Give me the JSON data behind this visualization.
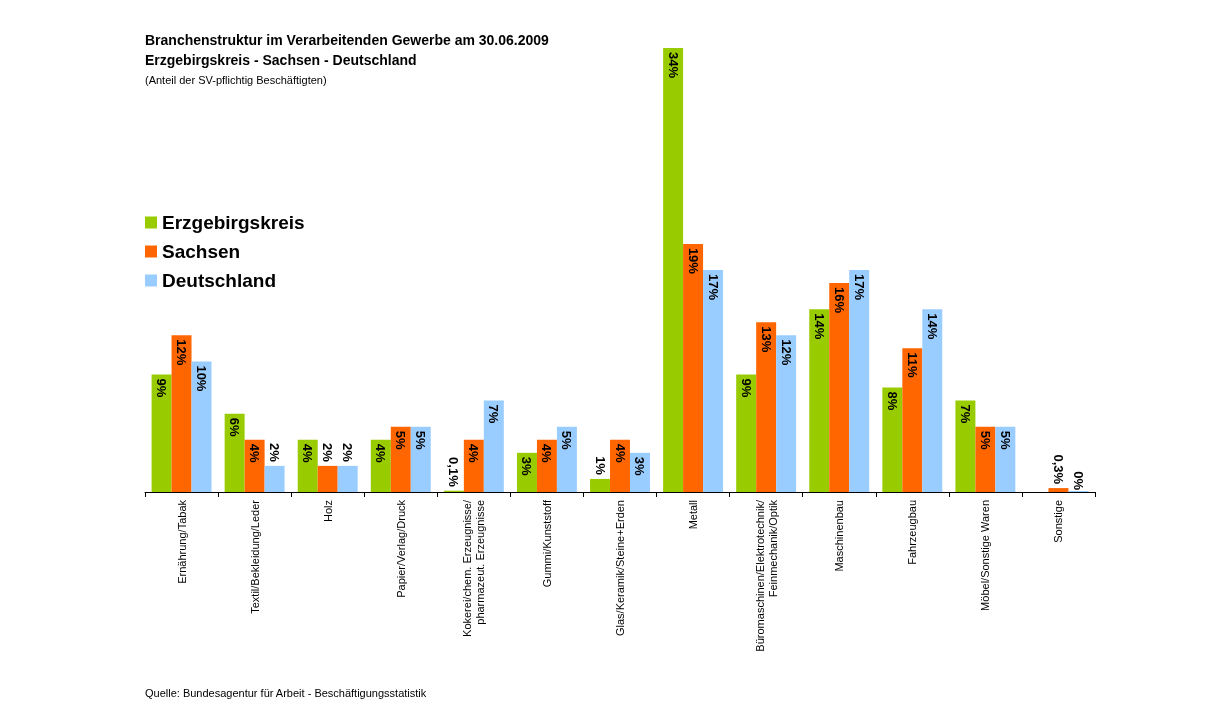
{
  "chart_data": {
    "type": "bar",
    "title": "Branchenstruktur im Verarbeitenden Gewerbe am 30.06.2009",
    "subtitle": "Erzgebirgskreis - Sachsen - Deutschland",
    "annotations": [
      "(Anteil der SV-pflichtig Beschäftigten)",
      "Quelle: Bundesagentur für Arbeit - Beschäftigungsstatistik"
    ],
    "categories": [
      "Ernährung/Tabak",
      "Textil/Bekleidung/Leder",
      "Holz",
      "Papier/Verlag/Druck",
      "Kokerei/chem. Erzeugnisse/\npharmazeut. Erzeugnisse",
      "Gummi/Kunststoff",
      "Glas/Keramik/Steine+Erden",
      "Metall",
      "Büromaschinen/Elektrotechnik/\nFeinmechanik/Optik",
      "Maschinenbau",
      "Fahrzeugbau",
      "Möbel/Sonstige Waren",
      "Sonstige"
    ],
    "series": [
      {
        "name": "Erzgebirgskreis",
        "color": "#99cc00",
        "values": [
          9,
          6,
          4,
          4,
          0.1,
          3,
          1,
          34,
          9,
          14,
          8,
          7,
          null
        ],
        "value_labels": [
          "9%",
          "6%",
          "4%",
          "4%",
          "0,1%",
          "3%",
          "1%",
          "34%",
          "9%",
          "14%",
          "8%",
          "7%",
          null
        ]
      },
      {
        "name": "Sachsen",
        "color": "#ff6600",
        "values": [
          12,
          4,
          2,
          5,
          4,
          4,
          4,
          19,
          13,
          16,
          11,
          5,
          0.3
        ],
        "value_labels": [
          "12%",
          "4%",
          "2%",
          "5%",
          "4%",
          "4%",
          "4%",
          "19%",
          "13%",
          "16%",
          "11%",
          "5%",
          "0,3%"
        ]
      },
      {
        "name": "Deutschland",
        "color": "#99ccff",
        "values": [
          10,
          2,
          2,
          5,
          7,
          5,
          3,
          17,
          12,
          17,
          14,
          5,
          0
        ],
        "value_labels": [
          "10%",
          "2%",
          "2%",
          "5%",
          "7%",
          "5%",
          "3%",
          "17%",
          "12%",
          "17%",
          "14%",
          "5%",
          "0%"
        ]
      }
    ],
    "legend": "left"
  }
}
